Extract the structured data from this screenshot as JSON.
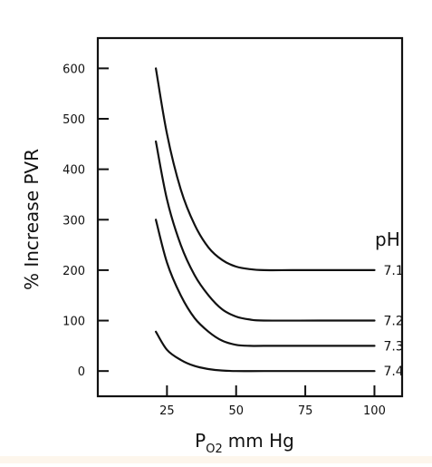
{
  "chart_data": {
    "type": "line",
    "title": "",
    "xlabel": {
      "main": "P",
      "sub": "O2",
      "rest": "mm Hg"
    },
    "ylabel": "% Increase PVR",
    "xlim": [
      0,
      110
    ],
    "ylim": [
      -50,
      660
    ],
    "x_ticks": [
      25,
      50,
      75,
      100
    ],
    "y_ticks": [
      0,
      100,
      200,
      300,
      400,
      500,
      600
    ],
    "x_tick_labels": [
      "25",
      "50",
      "75",
      "100"
    ],
    "y_tick_labels": [
      "0",
      "100",
      "200",
      "300",
      "400",
      "500",
      "600"
    ],
    "grid": false,
    "legend_title": "pH",
    "series": [
      {
        "name": "7.1",
        "points": [
          [
            21,
            600
          ],
          [
            25,
            470
          ],
          [
            30,
            360
          ],
          [
            35,
            290
          ],
          [
            40,
            245
          ],
          [
            45,
            220
          ],
          [
            50,
            207
          ],
          [
            55,
            202
          ],
          [
            60,
            200
          ],
          [
            70,
            200
          ],
          [
            80,
            200
          ],
          [
            100,
            200
          ]
        ]
      },
      {
        "name": "7.2",
        "points": [
          [
            21,
            455
          ],
          [
            25,
            340
          ],
          [
            30,
            250
          ],
          [
            35,
            190
          ],
          [
            40,
            150
          ],
          [
            45,
            122
          ],
          [
            50,
            108
          ],
          [
            55,
            102
          ],
          [
            60,
            100
          ],
          [
            80,
            100
          ],
          [
            100,
            100
          ]
        ]
      },
      {
        "name": "7.3",
        "points": [
          [
            21,
            300
          ],
          [
            25,
            215
          ],
          [
            30,
            150
          ],
          [
            35,
            105
          ],
          [
            40,
            78
          ],
          [
            45,
            60
          ],
          [
            50,
            52
          ],
          [
            55,
            50
          ],
          [
            60,
            50
          ],
          [
            80,
            50
          ],
          [
            100,
            50
          ]
        ]
      },
      {
        "name": "7.4",
        "points": [
          [
            21,
            78
          ],
          [
            25,
            42
          ],
          [
            30,
            22
          ],
          [
            35,
            10
          ],
          [
            40,
            4
          ],
          [
            45,
            1
          ],
          [
            50,
            0
          ],
          [
            60,
            0
          ],
          [
            80,
            0
          ],
          [
            100,
            0
          ]
        ]
      }
    ]
  }
}
